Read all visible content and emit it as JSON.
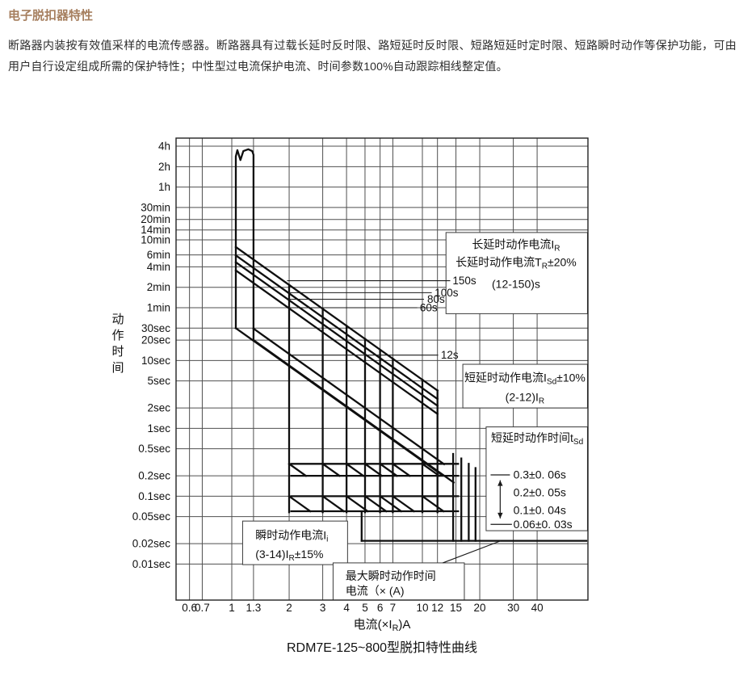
{
  "page": {
    "title": "电子脱扣器特性",
    "title_color": "#a67f5f",
    "body": "断路器内装按有效值采样的电流传感器。断路器具有过载长延时反时限、路短延时反时限、短路短延时定时限、短路瞬时动作等保护功能，可由用户自行设定组成所需的保护特性；中性型过电流保护电流、时间参数100%自动跟踪相线整定值。"
  },
  "chart_data": {
    "type": "line",
    "title": "RDM7E-125~800型脱扣特性曲线",
    "xlabel_segments": [
      [
        "电流(×I",
        0
      ],
      [
        "R",
        1
      ],
      [
        ")A",
        0
      ]
    ],
    "ylabel": "动作时间",
    "x_log": true,
    "y_log": true,
    "grid": true,
    "x_range": [
      0.51,
      73.9
    ],
    "y_range_seconds": [
      0.0029,
      18900
    ],
    "x_ticks": [
      {
        "label": "0.6",
        "v": 0.6
      },
      {
        "label": "0.7",
        "v": 0.7
      },
      {
        "label": "1",
        "v": 1
      },
      {
        "label": "1.3",
        "v": 1.3
      },
      {
        "label": "2",
        "v": 2
      },
      {
        "label": "3",
        "v": 3
      },
      {
        "label": "4",
        "v": 4
      },
      {
        "label": "5",
        "v": 5
      },
      {
        "label": "6",
        "v": 6
      },
      {
        "label": "7",
        "v": 7
      },
      {
        "label": "10",
        "v": 10
      },
      {
        "label": "12",
        "v": 12
      },
      {
        "label": "15",
        "v": 15
      },
      {
        "label": "20",
        "v": 20
      },
      {
        "label": "30",
        "v": 30
      },
      {
        "label": "40",
        "v": 40
      }
    ],
    "y_ticks": [
      {
        "label": "4h",
        "v": 14400
      },
      {
        "label": "2h",
        "v": 7200
      },
      {
        "label": "1h",
        "v": 3600
      },
      {
        "label": "30min",
        "v": 1800
      },
      {
        "label": "20min",
        "v": 1200
      },
      {
        "label": "14min",
        "v": 840
      },
      {
        "label": "10min",
        "v": 600
      },
      {
        "label": "6min",
        "v": 360
      },
      {
        "label": "4min",
        "v": 240
      },
      {
        "label": "2min",
        "v": 120
      },
      {
        "label": "1min",
        "v": 60
      },
      {
        "label": "30sec",
        "v": 30
      },
      {
        "label": "20sec",
        "v": 20
      },
      {
        "label": "10sec",
        "v": 10
      },
      {
        "label": "5sec",
        "v": 5
      },
      {
        "label": "2sec",
        "v": 2
      },
      {
        "label": "1sec",
        "v": 1
      },
      {
        "label": "0.5sec",
        "v": 0.5
      },
      {
        "label": "0.2sec",
        "v": 0.2
      },
      {
        "label": "0.1sec",
        "v": 0.1
      },
      {
        "label": "0.05sec",
        "v": 0.05
      },
      {
        "label": "0.02sec",
        "v": 0.02
      },
      {
        "label": "0.01sec",
        "v": 0.01
      }
    ],
    "curves": [
      {
        "name": "long-delay-pickup-band",
        "pts": [
          [
            1.05,
            30
          ],
          [
            1.05,
            10200
          ],
          [
            1.07,
            12600
          ],
          [
            1.11,
            9000
          ],
          [
            1.15,
            12200
          ],
          [
            1.22,
            13000
          ],
          [
            1.28,
            12200
          ],
          [
            1.3,
            10800
          ],
          [
            1.3,
            20
          ]
        ]
      },
      {
        "name": "long-delay-150s",
        "pts": [
          [
            1.05,
            472
          ],
          [
            12,
            3.61
          ]
        ]
      },
      {
        "name": "long-delay-100s",
        "pts": [
          [
            1.05,
            354
          ],
          [
            12,
            2.71
          ]
        ]
      },
      {
        "name": "long-delay-80s",
        "pts": [
          [
            1.05,
            281
          ],
          [
            12,
            2.15
          ]
        ]
      },
      {
        "name": "long-delay-60s",
        "pts": [
          [
            1.05,
            213
          ],
          [
            12,
            1.63
          ]
        ]
      },
      {
        "name": "band-lower-left",
        "pts": [
          [
            1.05,
            30
          ],
          [
            12.5,
            0.211
          ]
        ]
      },
      {
        "name": "band-lower-right",
        "pts": [
          [
            1.3,
            20
          ],
          [
            14.6,
            0.159
          ]
        ]
      },
      {
        "name": "short-delay-12s",
        "pts": [
          [
            1.3,
            29.6
          ],
          [
            13.0,
            0.296
          ]
        ]
      },
      {
        "name": "sd-drop-2",
        "pts": [
          [
            2,
            130
          ],
          [
            2,
            0.058
          ]
        ]
      },
      {
        "name": "sd-drop-3",
        "pts": [
          [
            3,
            57.8
          ],
          [
            3,
            0.058
          ]
        ]
      },
      {
        "name": "sd-drop-4",
        "pts": [
          [
            4,
            32.5
          ],
          [
            4,
            0.058
          ]
        ]
      },
      {
        "name": "sd-drop-5",
        "pts": [
          [
            5,
            20.8
          ],
          [
            5,
            0.058
          ]
        ]
      },
      {
        "name": "sd-drop-6",
        "pts": [
          [
            6,
            14.4
          ],
          [
            6,
            0.058
          ]
        ]
      },
      {
        "name": "sd-drop-7",
        "pts": [
          [
            7,
            10.6
          ],
          [
            7,
            0.058
          ]
        ]
      },
      {
        "name": "sd-drop-10",
        "pts": [
          [
            10,
            5.2
          ],
          [
            10,
            0.058
          ]
        ]
      },
      {
        "name": "sd-drop-12",
        "pts": [
          [
            12,
            3.61
          ],
          [
            12,
            0.058
          ]
        ]
      },
      {
        "name": "tsd-plateau-0.3s",
        "pts": [
          [
            2.05,
            0.3
          ],
          [
            15.4,
            0.3
          ]
        ]
      },
      {
        "name": "tsd-plateau-0.2s",
        "pts": [
          [
            2.05,
            0.2
          ],
          [
            15.4,
            0.2
          ]
        ]
      },
      {
        "name": "tsd-plateau-0.1s",
        "pts": [
          [
            2.05,
            0.1
          ],
          [
            15.4,
            0.1
          ]
        ]
      },
      {
        "name": "tsd-plateau-0.06s",
        "pts": [
          [
            2.05,
            0.06
          ],
          [
            15.4,
            0.06
          ]
        ]
      },
      {
        "name": "i2t-stub",
        "pts": [
          [
            2,
            0.3
          ],
          [
            2.45,
            0.2
          ]
        ]
      },
      {
        "name": "i2t-stub",
        "pts": [
          [
            2,
            0.1
          ],
          [
            2.58,
            0.06
          ]
        ]
      },
      {
        "name": "i2t-stub",
        "pts": [
          [
            3,
            0.3
          ],
          [
            3.68,
            0.2
          ]
        ]
      },
      {
        "name": "i2t-stub",
        "pts": [
          [
            3,
            0.1
          ],
          [
            3.87,
            0.06
          ]
        ]
      },
      {
        "name": "i2t-stub",
        "pts": [
          [
            4,
            0.3
          ],
          [
            4.9,
            0.2
          ]
        ]
      },
      {
        "name": "i2t-stub",
        "pts": [
          [
            4,
            0.1
          ],
          [
            5.16,
            0.06
          ]
        ]
      },
      {
        "name": "i2t-stub",
        "pts": [
          [
            5,
            0.3
          ],
          [
            6.13,
            0.2
          ]
        ]
      },
      {
        "name": "i2t-stub",
        "pts": [
          [
            5,
            0.1
          ],
          [
            6.45,
            0.06
          ]
        ]
      },
      {
        "name": "i2t-stub",
        "pts": [
          [
            6,
            0.3
          ],
          [
            7.35,
            0.2
          ]
        ]
      },
      {
        "name": "i2t-stub",
        "pts": [
          [
            6,
            0.1
          ],
          [
            7.74,
            0.06
          ]
        ]
      },
      {
        "name": "i2t-stub",
        "pts": [
          [
            7,
            0.3
          ],
          [
            8.58,
            0.2
          ]
        ]
      },
      {
        "name": "i2t-stub",
        "pts": [
          [
            7,
            0.1
          ],
          [
            9.03,
            0.06
          ]
        ]
      },
      {
        "name": "i2t-stub",
        "pts": [
          [
            10,
            0.3
          ],
          [
            12.25,
            0.2
          ]
        ]
      },
      {
        "name": "i2t-stub",
        "pts": [
          [
            10,
            0.1
          ],
          [
            12.9,
            0.06
          ]
        ]
      },
      {
        "name": "inst-drop",
        "pts": [
          [
            14.5,
            0.42
          ],
          [
            14.5,
            0.022
          ]
        ]
      },
      {
        "name": "inst-drop",
        "pts": [
          [
            16,
            0.36
          ],
          [
            16,
            0.022
          ]
        ]
      },
      {
        "name": "inst-drop",
        "pts": [
          [
            17.5,
            0.3
          ],
          [
            17.5,
            0.022
          ]
        ]
      },
      {
        "name": "inst-drop",
        "pts": [
          [
            19,
            0.26
          ],
          [
            19,
            0.022
          ]
        ]
      },
      {
        "name": "inst-drop-min",
        "pts": [
          [
            4.8,
            0.058
          ],
          [
            4.8,
            0.022
          ]
        ]
      },
      {
        "name": "min-trip-time-line",
        "pts": [
          [
            4.8,
            0.022
          ],
          [
            72.5,
            0.022
          ]
        ]
      }
    ],
    "leaders": [
      {
        "label": "150s",
        "t": 150,
        "from": 1.95,
        "to": 14.0,
        "label_x": 14.4
      },
      {
        "label": "100s",
        "t": 100,
        "from": 1.97,
        "to": 11.2,
        "label_x": 11.6
      },
      {
        "label": "80s",
        "t": 80,
        "from": 1.97,
        "to": 10.2,
        "label_x": 10.6
      },
      {
        "label": "60s",
        "t": 60,
        "from": 1.98,
        "to": 9.4,
        "label_x": 9.7
      },
      {
        "label": "12s",
        "t": 12,
        "from": 2.04,
        "to": 12.1,
        "label_x": 12.5
      }
    ],
    "boxes": [
      {
        "name": "long-delay-note",
        "x": [
          13.3,
          73.5
        ],
        "t": [
          770,
          49
        ],
        "align": "middle",
        "anchor_x": 31,
        "lines": [
          {
            "t": 509,
            "seg": [
              [
                "长延时动作电流I",
                0
              ],
              [
                "R",
                1
              ]
            ]
          },
          {
            "t": 279,
            "seg": [
              [
                "长延时动作电流T",
                0
              ],
              [
                "R",
                1
              ],
              [
                "±20%",
                0
              ]
            ]
          },
          {
            "t": 133,
            "seg": [
              [
                "(12-150)s",
                0
              ]
            ]
          }
        ]
      },
      {
        "name": "short-delay-current-note",
        "x": [
          16.3,
          73.5
        ],
        "t": [
          8.8,
          2.0
        ],
        "align": "middle",
        "anchor_x": 34.5,
        "lines": [
          {
            "t": 5.5,
            "seg": [
              [
                "短延时动作电流I",
                0
              ],
              [
                "Sd",
                1
              ],
              [
                "±10%",
                0
              ]
            ]
          },
          {
            "t": 2.86,
            "seg": [
              [
                "(2-12)I",
                0
              ],
              [
                "R",
                1
              ]
            ]
          }
        ]
      },
      {
        "name": "short-delay-time-note",
        "x": [
          21.6,
          73.5
        ],
        "t": [
          1.05,
          0.031
        ],
        "align": "middle",
        "anchor_x": 40,
        "lines": [
          {
            "t": 0.72,
            "seg": [
              [
                "短延时动作时间t",
                0
              ],
              [
                "Sd",
                1
              ]
            ]
          }
        ]
      },
      {
        "name": "instantaneous-current-note",
        "x": [
          1.14,
          4.05
        ],
        "t": [
          0.043,
          0.0098
        ],
        "align": "start",
        "anchor_x": 1.33,
        "lines": [
          {
            "t": 0.0265,
            "seg": [
              [
                "瞬时动作电流I",
                0
              ],
              [
                "i",
                1
              ]
            ]
          },
          {
            "t": 0.0138,
            "seg": [
              [
                "(3-14)I",
                0
              ],
              [
                "R",
                1
              ],
              [
                "±15%",
                0
              ]
            ]
          }
        ]
      },
      {
        "name": "max-instantaneous-note",
        "x": [
          3.4,
          16.6
        ],
        "t": [
          0.0104,
          0.00285
        ],
        "align": "start",
        "anchor_x": 3.95,
        "lines": [
          {
            "t": 0.0066,
            "seg": [
              [
                "最大瞬时动作时间",
                0
              ]
            ]
          },
          {
            "t": 0.004,
            "seg": [
              [
                "电流（×  (A)",
                0
              ]
            ]
          }
        ]
      }
    ],
    "max_inst_leader": {
      "pts": [
        [
          12.8,
          0.0104
        ],
        [
          25.8,
          0.022
        ]
      ]
    },
    "tsd_annotation": {
      "values": [
        "0.3±0. 06s",
        "0.2±0. 05s",
        "0.1±0. 04s",
        "0.06±0. 03s"
      ],
      "value_rows_t": [
        0.206,
        0.113,
        0.062,
        0.0384
      ],
      "value_x": 30,
      "ticks": [
        {
          "t": 0.206,
          "x1": 22.8,
          "x2": 28.8
        },
        {
          "t": 0.0384,
          "x1": 22.8,
          "x2": 29.5
        }
      ],
      "arrow": {
        "x": 25.6,
        "t1": 0.172,
        "t2": 0.047
      }
    },
    "colors": {
      "grid": "#4f4f4f",
      "border": "#222222",
      "curve": "#0f0f0f",
      "leader": "#1a1a1a",
      "box_border": "#3a3a3a",
      "box_fill": "#ffffff",
      "text": "#111111"
    }
  }
}
